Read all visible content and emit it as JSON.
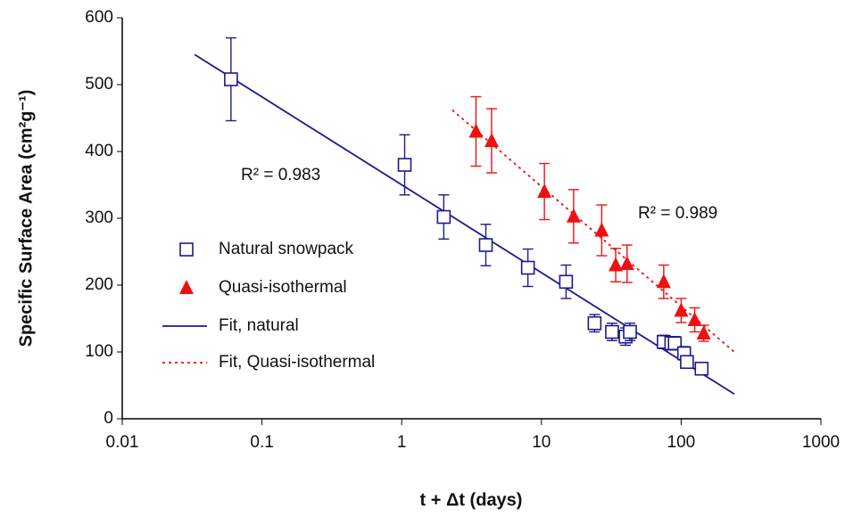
{
  "chart_data": {
    "type": "scatter",
    "x_label": "t + Δt (days)",
    "y_label": "Specific Surface Area (cm²g⁻¹)",
    "xscale": "log",
    "xlim": [
      0.01,
      1000
    ],
    "xticks": [
      0.01,
      0.1,
      1,
      10,
      100,
      1000
    ],
    "ylim": [
      0,
      600
    ],
    "yticks": [
      0,
      100,
      200,
      300,
      400,
      500,
      600
    ],
    "grid": false,
    "legend": "left",
    "series": [
      {
        "name": "Natural snowpack",
        "color": "#1a1a8c",
        "marker": "square",
        "x": [
          0.06,
          1.05,
          2.0,
          4.0,
          8.0,
          15,
          24,
          32,
          40,
          43,
          75,
          85,
          90,
          105,
          110,
          140
        ],
        "values": [
          508,
          380,
          302,
          260,
          226,
          205,
          143,
          130,
          123,
          130,
          115,
          113,
          113,
          98,
          85,
          75
        ],
        "errors": [
          62,
          45,
          33,
          31,
          28,
          25,
          13,
          13,
          13,
          13,
          10,
          10,
          10,
          10,
          8,
          7
        ]
      },
      {
        "name": "Quasi-isothermal",
        "color": "#ee1111",
        "marker": "triangle",
        "x": [
          3.4,
          4.4,
          10.5,
          17,
          27,
          34,
          41,
          75,
          100,
          125,
          145
        ],
        "values": [
          430,
          416,
          340,
          303,
          282,
          230,
          232,
          205,
          162,
          148,
          128
        ],
        "errors": [
          52,
          48,
          42,
          40,
          38,
          25,
          28,
          25,
          18,
          18,
          12
        ]
      }
    ],
    "fits": [
      {
        "name": "Fit, natural",
        "color": "#1a1a8c",
        "dash": "solid",
        "x": [
          0.033,
          240
        ],
        "values": [
          545,
          37
        ]
      },
      {
        "name": "Fit, Quasi-isothermal",
        "color": "#ee1111",
        "dash": "dotted",
        "x": [
          2.3,
          240
        ],
        "values": [
          462,
          100
        ]
      }
    ],
    "annotations": [
      "R² = 0.983",
      "R² = 0.989"
    ]
  }
}
